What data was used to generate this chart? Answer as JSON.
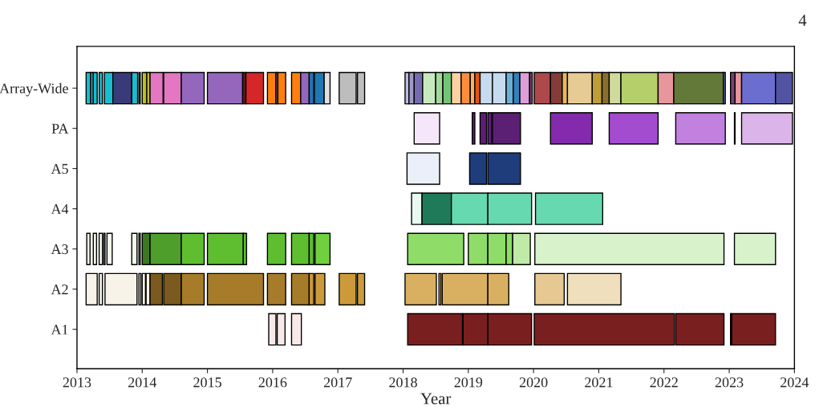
{
  "chart_data": {
    "type": "bar",
    "orientation": "horizontal",
    "xlabel": "Year",
    "annotations": [
      "4"
    ],
    "categories": [
      "Array-Wide",
      "PA",
      "A5",
      "A4",
      "A3",
      "A2",
      "A1"
    ],
    "xlim": [
      2013,
      2024
    ],
    "xticks": [
      2013,
      2014,
      2015,
      2016,
      2017,
      2018,
      2019,
      2020,
      2021,
      2022,
      2023,
      2024
    ],
    "series": [
      {
        "base": [
          2013.14,
          2018.17,
          2018.06,
          2018.13,
          2013.15,
          2013.14,
          2015.94
        ],
        "values": [
          0.07,
          0.39,
          0.5,
          0.16,
          0.05,
          0.17,
          0.11
        ],
        "colors": [
          "#17becf",
          "#f5e6fa",
          "#ebeff9",
          "#e8f8f2",
          "#f0fbe8",
          "#f7f3e8",
          "#f8e8e8"
        ]
      },
      {
        "base": [
          2013.21,
          2019.06,
          2019.02,
          2018.29,
          2013.25,
          2013.34,
          2016.07
        ],
        "values": [
          0.04,
          0.04,
          0.26,
          0.45,
          0.05,
          0.05,
          0.12
        ],
        "colors": [
          "#17becf",
          "#5b1f73",
          "#1f3d7a",
          "#1f7a5a",
          "#f0fbe8",
          "#f7f3e8",
          "#f8e8e8"
        ]
      },
      {
        "base": [
          2013.25,
          2019.18,
          2019.3,
          2018.74,
          2013.34,
          2013.43,
          2016.29
        ],
        "values": [
          0.06,
          0.1,
          0.5,
          0.56,
          0.05,
          0.49,
          0.15
        ],
        "colors": [
          "#17becf",
          "#5b1f73",
          "#1f3d7a",
          "#66d9b0",
          "#f0fbe8",
          "#f7f3e8",
          "#f8e8e8"
        ]
      },
      {
        "base": [
          2013.34,
          2019.3,
          null,
          2019.3,
          2013.41,
          2013.95,
          2018.07
        ],
        "values": [
          0.05,
          0.06,
          null,
          0.67,
          0.02,
          0.03,
          0.84
        ],
        "colors": [
          "#17becf",
          "#5b1f73",
          null,
          "#66d9b0",
          "#f0fbe8",
          "#f7f3e8",
          "#7a1f1f"
        ]
      },
      {
        "base": [
          2013.42,
          2019.37,
          null,
          2020.03,
          2013.46,
          2014.0,
          2018.92
        ],
        "values": [
          0.13,
          0.43,
          null,
          1.03,
          0.08,
          0.05,
          0.38
        ],
        "colors": [
          "#17becf",
          "#5b1f73",
          null,
          "#66d9b0",
          "#f0fbe8",
          "#f7f3e8",
          "#7a1f1f"
        ]
      },
      {
        "base": [
          2013.55,
          2020.26,
          null,
          null,
          2013.84,
          2014.06,
          2019.3
        ],
        "values": [
          0.29,
          0.64,
          null,
          null,
          0.08,
          0.06,
          0.67
        ],
        "colors": [
          "#393b79",
          "#842bad",
          null,
          null,
          "#f0fbe8",
          "#f7f3e8",
          "#7a1f1f"
        ]
      },
      {
        "base": [
          2013.84,
          2021.16,
          null,
          null,
          2013.95,
          2014.12,
          2020.01
        ],
        "values": [
          0.09,
          0.75,
          null,
          null,
          0.02,
          0.19,
          2.15
        ],
        "colors": [
          "#17becf",
          "#a34ccf",
          null,
          null,
          "#f0fbe8",
          "#7a5a1f",
          "#7a1f1f"
        ]
      },
      {
        "base": [
          2013.95,
          2022.18,
          null,
          null,
          2014.0,
          2014.33,
          2022.18
        ],
        "values": [
          0.02,
          0.76,
          null,
          null,
          0.12,
          0.27,
          0.74
        ],
        "colors": [
          "#17becf",
          "#c181df",
          null,
          null,
          "#3d7a1f",
          "#7a5a1f",
          "#7a1f1f"
        ]
      },
      {
        "base": [
          2014.0,
          2023.08,
          null,
          null,
          2014.12,
          2014.6,
          2023.02
        ],
        "values": [
          0.07,
          0.01,
          null,
          null,
          0.48,
          0.35,
          0.02
        ],
        "colors": [
          "#bcbd22",
          "#dbb5ea",
          null,
          null,
          "#4d9e2a",
          "#a67c2a",
          "#7a1f1f"
        ]
      },
      {
        "base": [
          2014.07,
          2023.19,
          null,
          null,
          2014.6,
          2015.0,
          2023.04
        ],
        "values": [
          0.05,
          0.78,
          null,
          null,
          0.35,
          0.86,
          0.67
        ],
        "colors": [
          "#bcbd22",
          "#dbb5ea",
          null,
          null,
          "#5ebe30",
          "#a67c2a",
          "#7a1f1f"
        ]
      },
      {
        "base": [
          2014.12,
          null,
          null,
          null,
          2015.0,
          2015.92,
          null
        ],
        "values": [
          0.2,
          null,
          null,
          null,
          0.55,
          0.28,
          null
        ],
        "colors": [
          "#e377c2",
          null,
          null,
          null,
          "#5ebe30",
          "#a67c2a",
          null
        ]
      },
      {
        "base": [
          2014.33,
          null,
          null,
          null,
          2015.55,
          2016.29,
          null
        ],
        "values": [
          0.27,
          null,
          null,
          null,
          0.05,
          0.27,
          null
        ],
        "colors": [
          "#e377c2",
          null,
          null,
          null,
          "#5ebe30",
          "#a67c2a",
          null
        ]
      },
      {
        "base": [
          2014.6,
          null,
          null,
          null,
          2015.92,
          2016.56,
          null
        ],
        "values": [
          0.35,
          null,
          null,
          null,
          0.28,
          0.07,
          null
        ],
        "colors": [
          "#9467bd",
          null,
          null,
          null,
          "#5ebe30",
          "#cc9a3a",
          null
        ]
      },
      {
        "base": [
          2015.0,
          null,
          null,
          null,
          2016.29,
          2016.65,
          null
        ],
        "values": [
          0.54,
          null,
          null,
          null,
          0.27,
          0.15,
          null
        ],
        "colors": [
          "#9467bd",
          null,
          null,
          null,
          "#5ebe30",
          "#cc9a3a",
          null
        ]
      },
      {
        "base": [
          2015.54,
          null,
          null,
          null,
          2016.56,
          2017.02,
          null
        ],
        "values": [
          0.05,
          null,
          null,
          null,
          0.07,
          0.26,
          null
        ],
        "colors": [
          "#5a1a1a",
          null,
          null,
          null,
          "#5ebe30",
          "#cc9a3a",
          null
        ]
      },
      {
        "base": [
          2015.59,
          null,
          null,
          null,
          2016.65,
          2017.3,
          null
        ],
        "values": [
          0.27,
          null,
          null,
          null,
          0.23,
          0.11,
          null
        ],
        "colors": [
          "#d62728",
          null,
          null,
          null,
          "#70d040",
          "#cc9a3a",
          null
        ]
      },
      {
        "base": [
          2015.92,
          null,
          null,
          null,
          2018.07,
          2018.03,
          null
        ],
        "values": [
          0.13,
          null,
          null,
          null,
          0.86,
          0.48,
          null
        ],
        "colors": [
          "#ff7f0e",
          null,
          null,
          null,
          "#8fdc68",
          "#d9b062",
          null
        ]
      },
      {
        "base": [
          2016.05,
          null,
          null,
          null,
          2019.0,
          2018.55,
          null
        ],
        "values": [
          0.03,
          null,
          null,
          null,
          0.3,
          0.03,
          null
        ],
        "colors": [
          "#9467bd",
          null,
          null,
          null,
          "#8fdc68",
          "#d9b062",
          null
        ]
      },
      {
        "base": [
          2016.08,
          null,
          null,
          null,
          2019.3,
          2018.6,
          null
        ],
        "values": [
          0.12,
          null,
          null,
          null,
          0.28,
          0.7,
          null
        ],
        "colors": [
          "#ff7f0e",
          null,
          null,
          null,
          "#8fdc68",
          "#d9b062",
          null
        ]
      },
      {
        "base": [
          2016.29,
          null,
          null,
          null,
          2019.58,
          2019.3,
          null
        ],
        "values": [
          0.14,
          null,
          null,
          null,
          0.1,
          0.32,
          null
        ],
        "colors": [
          "#ff7f0e",
          null,
          null,
          null,
          "#8fdc68",
          "#d9b062",
          null
        ]
      },
      {
        "base": [
          2016.43,
          null,
          null,
          null,
          2019.68,
          2020.02,
          null
        ],
        "values": [
          0.13,
          null,
          null,
          null,
          0.27,
          0.45,
          null
        ],
        "colors": [
          "#9467bd",
          null,
          null,
          null,
          "#bfeaa8",
          "#e5c892",
          null
        ]
      },
      {
        "base": [
          2016.56,
          null,
          null,
          null,
          2020.02,
          2020.52,
          null
        ],
        "values": [
          0.07,
          null,
          null,
          null,
          2.9,
          0.82,
          null
        ],
        "colors": [
          "#1f77b4",
          null,
          null,
          null,
          "#d8f2cc",
          "#efdfbc",
          null
        ]
      },
      {
        "base": [
          2016.64,
          null,
          null,
          null,
          2023.08,
          null,
          null
        ],
        "values": [
          0.15,
          null,
          null,
          null,
          0.63,
          null,
          null
        ],
        "colors": [
          "#1f77b4",
          null,
          null,
          null,
          "#d8f2cc",
          null,
          null
        ]
      },
      {
        "base": [
          2016.79,
          null,
          null,
          null,
          null,
          null,
          null
        ],
        "values": [
          0.09,
          null,
          null,
          null,
          null,
          null,
          null
        ],
        "colors": [
          "#e0e0e0",
          null,
          null,
          null,
          null,
          null,
          null
        ]
      },
      {
        "base": [
          2017.02,
          null,
          null,
          null,
          null,
          null,
          null
        ],
        "values": [
          0.26,
          null,
          null,
          null,
          null,
          null,
          null
        ],
        "colors": [
          "#bdbdbd",
          null,
          null,
          null,
          null,
          null,
          null
        ]
      },
      {
        "base": [
          2017.3,
          null,
          null,
          null,
          null,
          null,
          null
        ],
        "values": [
          0.11,
          null,
          null,
          null,
          null,
          null,
          null
        ],
        "colors": [
          "#bdbdbd",
          null,
          null,
          null,
          null,
          null,
          null
        ]
      },
      {
        "base": [
          2018.03,
          null,
          null,
          null,
          null,
          null,
          null
        ],
        "values": [
          0.06,
          null,
          null,
          null,
          null,
          null,
          null
        ],
        "colors": [
          "#bcbddc",
          null,
          null,
          null,
          null,
          null,
          null
        ]
      },
      {
        "base": [
          2018.09,
          null,
          null,
          null,
          null,
          null,
          null
        ],
        "values": [
          0.08,
          null,
          null,
          null,
          null,
          null,
          null
        ],
        "colors": [
          "#9e9ac8",
          null,
          null,
          null,
          null,
          null,
          null
        ]
      },
      {
        "base": [
          2018.17,
          null,
          null,
          null,
          null,
          null,
          null
        ],
        "values": [
          0.13,
          null,
          null,
          null,
          null,
          null,
          null
        ],
        "colors": [
          "#756bb1",
          null,
          null,
          null,
          null,
          null,
          null
        ]
      },
      {
        "base": [
          2018.3,
          null,
          null,
          null,
          null,
          null,
          null
        ],
        "values": [
          0.2,
          null,
          null,
          null,
          null,
          null,
          null
        ],
        "colors": [
          "#c7e9c0",
          null,
          null,
          null,
          null,
          null,
          null
        ]
      },
      {
        "base": [
          2018.5,
          null,
          null,
          null,
          null,
          null,
          null
        ],
        "values": [
          0.11,
          null,
          null,
          null,
          null,
          null,
          null
        ],
        "colors": [
          "#a1d99b",
          null,
          null,
          null,
          null,
          null,
          null
        ]
      },
      {
        "base": [
          2018.61,
          null,
          null,
          null,
          null,
          null,
          null
        ],
        "values": [
          0.13,
          null,
          null,
          null,
          null,
          null,
          null
        ],
        "colors": [
          "#74c476",
          null,
          null,
          null,
          null,
          null,
          null
        ]
      },
      {
        "base": [
          2018.74,
          null,
          null,
          null,
          null,
          null,
          null
        ],
        "values": [
          0.15,
          null,
          null,
          null,
          null,
          null,
          null
        ],
        "colors": [
          "#fdd0a2",
          null,
          null,
          null,
          null,
          null,
          null
        ]
      },
      {
        "base": [
          2018.89,
          null,
          null,
          null,
          null,
          null,
          null
        ],
        "values": [
          0.14,
          null,
          null,
          null,
          null,
          null,
          null
        ],
        "colors": [
          "#fd8d3c",
          null,
          null,
          null,
          null,
          null,
          null
        ]
      },
      {
        "base": [
          2019.03,
          null,
          null,
          null,
          null,
          null,
          null
        ],
        "values": [
          0.07,
          null,
          null,
          null,
          null,
          null,
          null
        ],
        "colors": [
          "#fdae6b",
          null,
          null,
          null,
          null,
          null,
          null
        ]
      },
      {
        "base": [
          2019.1,
          null,
          null,
          null,
          null,
          null,
          null
        ],
        "values": [
          0.08,
          null,
          null,
          null,
          null,
          null,
          null
        ],
        "colors": [
          "#e6550d",
          null,
          null,
          null,
          null,
          null,
          null
        ]
      },
      {
        "base": [
          2019.18,
          null,
          null,
          null,
          null,
          null,
          null
        ],
        "values": [
          0.19,
          null,
          null,
          null,
          null,
          null,
          null
        ],
        "colors": [
          "#c6dbef",
          null,
          null,
          null,
          null,
          null,
          null
        ]
      },
      {
        "base": [
          2019.37,
          null,
          null,
          null,
          null,
          null,
          null
        ],
        "values": [
          0.21,
          null,
          null,
          null,
          null,
          null,
          null
        ],
        "colors": [
          "#c6dbef",
          null,
          null,
          null,
          null,
          null,
          null
        ]
      },
      {
        "base": [
          2019.58,
          null,
          null,
          null,
          null,
          null,
          null
        ],
        "values": [
          0.11,
          null,
          null,
          null,
          null,
          null,
          null
        ],
        "colors": [
          "#6baed6",
          null,
          null,
          null,
          null,
          null,
          null
        ]
      },
      {
        "base": [
          2019.69,
          null,
          null,
          null,
          null,
          null,
          null
        ],
        "values": [
          0.1,
          null,
          null,
          null,
          null,
          null,
          null
        ],
        "colors": [
          "#3182bd",
          null,
          null,
          null,
          null,
          null,
          null
        ]
      },
      {
        "base": [
          2019.79,
          null,
          null,
          null,
          null,
          null,
          null
        ],
        "values": [
          0.15,
          null,
          null,
          null,
          null,
          null,
          null
        ],
        "colors": [
          "#de9ed6",
          null,
          null,
          null,
          null,
          null,
          null
        ]
      },
      {
        "base": [
          2019.94,
          null,
          null,
          null,
          null,
          null,
          null
        ],
        "values": [
          0.04,
          null,
          null,
          null,
          null,
          null,
          null
        ],
        "colors": [
          "#7b4173",
          null,
          null,
          null,
          null,
          null,
          null
        ]
      },
      {
        "base": [
          2020.01,
          null,
          null,
          null,
          null,
          null,
          null
        ],
        "values": [
          0.25,
          null,
          null,
          null,
          null,
          null,
          null
        ],
        "colors": [
          "#ad494a",
          null,
          null,
          null,
          null,
          null,
          null
        ]
      },
      {
        "base": [
          2020.26,
          null,
          null,
          null,
          null,
          null,
          null
        ],
        "values": [
          0.18,
          null,
          null,
          null,
          null,
          null,
          null
        ],
        "colors": [
          "#843c39",
          null,
          null,
          null,
          null,
          null,
          null
        ]
      },
      {
        "base": [
          2020.44,
          null,
          null,
          null,
          null,
          null,
          null
        ],
        "values": [
          0.08,
          null,
          null,
          null,
          null,
          null,
          null
        ],
        "colors": [
          "#e7ba52",
          null,
          null,
          null,
          null,
          null,
          null
        ]
      },
      {
        "base": [
          2020.52,
          null,
          null,
          null,
          null,
          null,
          null
        ],
        "values": [
          0.38,
          null,
          null,
          null,
          null,
          null,
          null
        ],
        "colors": [
          "#e7cb94",
          null,
          null,
          null,
          null,
          null,
          null
        ]
      },
      {
        "base": [
          2020.9,
          null,
          null,
          null,
          null,
          null,
          null
        ],
        "values": [
          0.15,
          null,
          null,
          null,
          null,
          null,
          null
        ],
        "colors": [
          "#bd9e39",
          null,
          null,
          null,
          null,
          null,
          null
        ]
      },
      {
        "base": [
          2021.05,
          null,
          null,
          null,
          null,
          null,
          null
        ],
        "values": [
          0.11,
          null,
          null,
          null,
          null,
          null,
          null
        ],
        "colors": [
          "#8c6d31",
          null,
          null,
          null,
          null,
          null,
          null
        ]
      },
      {
        "base": [
          2021.16,
          null,
          null,
          null,
          null,
          null,
          null
        ],
        "values": [
          0.18,
          null,
          null,
          null,
          null,
          null,
          null
        ],
        "colors": [
          "#cedb9c",
          null,
          null,
          null,
          null,
          null,
          null
        ]
      },
      {
        "base": [
          2021.34,
          null,
          null,
          null,
          null,
          null,
          null
        ],
        "values": [
          0.57,
          null,
          null,
          null,
          null,
          null,
          null
        ],
        "colors": [
          "#b5cf6b",
          null,
          null,
          null,
          null,
          null,
          null
        ]
      },
      {
        "base": [
          2021.91,
          null,
          null,
          null,
          null,
          null,
          null
        ],
        "values": [
          0.24,
          null,
          null,
          null,
          null,
          null,
          null
        ],
        "colors": [
          "#e7969c",
          null,
          null,
          null,
          null,
          null,
          null
        ]
      },
      {
        "base": [
          2022.15,
          null,
          null,
          null,
          null,
          null,
          null
        ],
        "values": [
          0.76,
          null,
          null,
          null,
          null,
          null,
          null
        ],
        "colors": [
          "#637939",
          null,
          null,
          null,
          null,
          null,
          null
        ]
      },
      {
        "base": [
          2022.91,
          null,
          null,
          null,
          null,
          null,
          null
        ],
        "values": [
          0.03,
          null,
          null,
          null,
          null,
          null,
          null
        ],
        "colors": [
          "#6b6ecf",
          null,
          null,
          null,
          null,
          null,
          null
        ]
      },
      {
        "base": [
          2023.02,
          null,
          null,
          null,
          null,
          null,
          null
        ],
        "values": [
          0.07,
          null,
          null,
          null,
          null,
          null,
          null
        ],
        "colors": [
          "#7b4173",
          null,
          null,
          null,
          null,
          null,
          null
        ]
      },
      {
        "base": [
          2023.09,
          null,
          null,
          null,
          null,
          null,
          null
        ],
        "values": [
          0.1,
          null,
          null,
          null,
          null,
          null,
          null
        ],
        "colors": [
          "#e7969c",
          null,
          null,
          null,
          null,
          null,
          null
        ]
      },
      {
        "base": [
          2023.19,
          null,
          null,
          null,
          null,
          null,
          null
        ],
        "values": [
          0.52,
          null,
          null,
          null,
          null,
          null,
          null
        ],
        "colors": [
          "#6b6ecf",
          null,
          null,
          null,
          null,
          null,
          null
        ]
      },
      {
        "base": [
          2023.71,
          null,
          null,
          null,
          null,
          null,
          null
        ],
        "values": [
          0.26,
          null,
          null,
          null,
          null,
          null,
          null
        ],
        "colors": [
          "#5254a3",
          null,
          null,
          null,
          null,
          null,
          null
        ]
      }
    ]
  }
}
